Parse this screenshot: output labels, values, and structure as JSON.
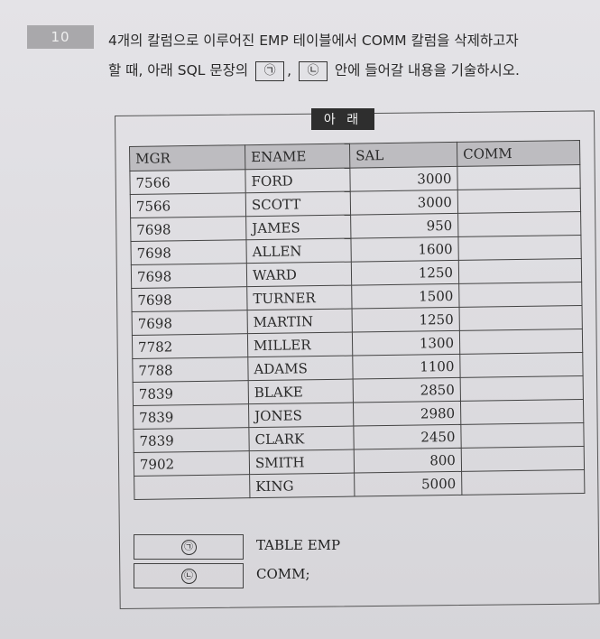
{
  "question": {
    "number": "10",
    "line1": "4개의 칼럼으로 이루어진 EMP 테이블에서 COMM 칼럼을 삭제하고자",
    "line2_prefix": "할 때, 아래 SQL 문장의",
    "blank1": "㉠",
    "separator": ",",
    "blank2": "㉡",
    "line2_suffix": "안에 들어갈 내용을 기술하시오."
  },
  "label": "아 래",
  "table": {
    "headers": [
      "MGR",
      "ENAME",
      "SAL",
      "COMM"
    ],
    "rows": [
      [
        "7566",
        "FORD",
        "3000",
        ""
      ],
      [
        "7566",
        "SCOTT",
        "3000",
        ""
      ],
      [
        "7698",
        "JAMES",
        "950",
        ""
      ],
      [
        "7698",
        "ALLEN",
        "1600",
        ""
      ],
      [
        "7698",
        "WARD",
        "1250",
        ""
      ],
      [
        "7698",
        "TURNER",
        "1500",
        ""
      ],
      [
        "7698",
        "MARTIN",
        "1250",
        ""
      ],
      [
        "7782",
        "MILLER",
        "1300",
        ""
      ],
      [
        "7788",
        "ADAMS",
        "1100",
        ""
      ],
      [
        "7839",
        "BLAKE",
        "2850",
        ""
      ],
      [
        "7839",
        "JONES",
        "2980",
        ""
      ],
      [
        "7839",
        "CLARK",
        "2450",
        ""
      ],
      [
        "7902",
        "SMITH",
        "800",
        ""
      ],
      [
        "",
        "KING",
        "5000",
        ""
      ]
    ]
  },
  "answer": {
    "blank1": "㉠",
    "line1_text": "TABLE EMP",
    "blank2": "㉡",
    "line2_text": "COMM;"
  }
}
